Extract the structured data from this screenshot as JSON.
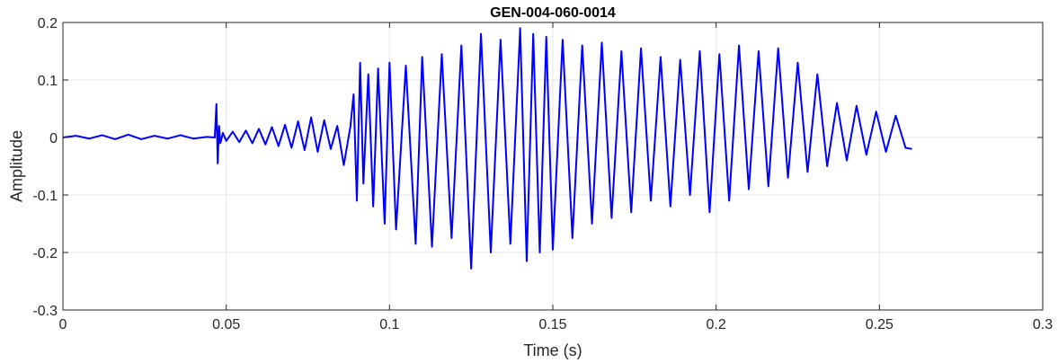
{
  "chart_data": {
    "type": "line",
    "title": "GEN-004-060-0014",
    "xlabel": "Time (s)",
    "ylabel": "Amplitude",
    "xlim": [
      0,
      0.3
    ],
    "ylim": [
      -0.3,
      0.2
    ],
    "xticks": [
      0,
      0.05,
      0.1,
      0.15,
      0.2,
      0.25,
      0.3
    ],
    "xtick_labels": [
      "0",
      "0.05",
      "0.1",
      "0.15",
      "0.2",
      "0.25",
      "0.3"
    ],
    "yticks": [
      -0.3,
      -0.2,
      -0.1,
      0,
      0.1,
      0.2
    ],
    "ytick_labels": [
      "-0.3",
      "-0.2",
      "-0.1",
      "0",
      "0.1",
      "0.2"
    ],
    "grid": true,
    "series_color": "#0000ff",
    "series": [
      {
        "x": [
          0.0,
          0.004,
          0.008,
          0.012,
          0.016,
          0.02,
          0.024,
          0.028,
          0.032,
          0.036,
          0.04,
          0.044,
          0.0465,
          0.047,
          0.0474,
          0.0478,
          0.0482,
          0.049,
          0.05,
          0.052,
          0.054,
          0.056,
          0.058,
          0.06,
          0.062,
          0.064,
          0.066,
          0.068,
          0.07,
          0.072,
          0.074,
          0.076,
          0.078,
          0.08,
          0.082,
          0.084,
          0.086,
          0.088,
          0.089,
          0.09,
          0.091,
          0.092,
          0.0935,
          0.095,
          0.0965,
          0.0985,
          0.1,
          0.102,
          0.105,
          0.108,
          0.11,
          0.113,
          0.116,
          0.119,
          0.122,
          0.125,
          0.128,
          0.131,
          0.134,
          0.137,
          0.14,
          0.142,
          0.144,
          0.146,
          0.148,
          0.15,
          0.153,
          0.156,
          0.159,
          0.162,
          0.165,
          0.168,
          0.171,
          0.174,
          0.177,
          0.18,
          0.183,
          0.186,
          0.189,
          0.192,
          0.195,
          0.198,
          0.201,
          0.204,
          0.207,
          0.21,
          0.213,
          0.216,
          0.219,
          0.222,
          0.225,
          0.228,
          0.231,
          0.234,
          0.237,
          0.24,
          0.243,
          0.246,
          0.249,
          0.252,
          0.255,
          0.258,
          0.26
        ],
        "y": [
          0.0,
          0.003,
          -0.002,
          0.004,
          -0.003,
          0.005,
          -0.003,
          0.003,
          -0.002,
          0.004,
          -0.002,
          0.001,
          0.0,
          0.058,
          -0.045,
          0.02,
          -0.01,
          0.008,
          -0.006,
          0.01,
          -0.008,
          0.012,
          -0.01,
          0.015,
          -0.012,
          0.018,
          -0.015,
          0.022,
          -0.018,
          0.028,
          -0.022,
          0.035,
          -0.025,
          0.03,
          -0.02,
          0.02,
          -0.048,
          0.018,
          0.075,
          -0.11,
          0.13,
          -0.08,
          0.11,
          -0.12,
          0.12,
          -0.15,
          0.13,
          -0.16,
          0.125,
          -0.185,
          0.14,
          -0.19,
          0.145,
          -0.175,
          0.16,
          -0.228,
          0.18,
          -0.2,
          0.17,
          -0.185,
          0.19,
          -0.215,
          0.18,
          -0.2,
          0.175,
          -0.195,
          0.17,
          -0.175,
          0.16,
          -0.15,
          0.165,
          -0.14,
          0.15,
          -0.13,
          0.155,
          -0.11,
          0.14,
          -0.12,
          0.135,
          -0.1,
          0.15,
          -0.13,
          0.145,
          -0.11,
          0.16,
          -0.09,
          0.15,
          -0.085,
          0.155,
          -0.07,
          0.13,
          -0.06,
          0.11,
          -0.05,
          0.06,
          -0.04,
          0.055,
          -0.03,
          0.045,
          -0.025,
          0.038,
          -0.018,
          -0.02
        ]
      }
    ]
  }
}
